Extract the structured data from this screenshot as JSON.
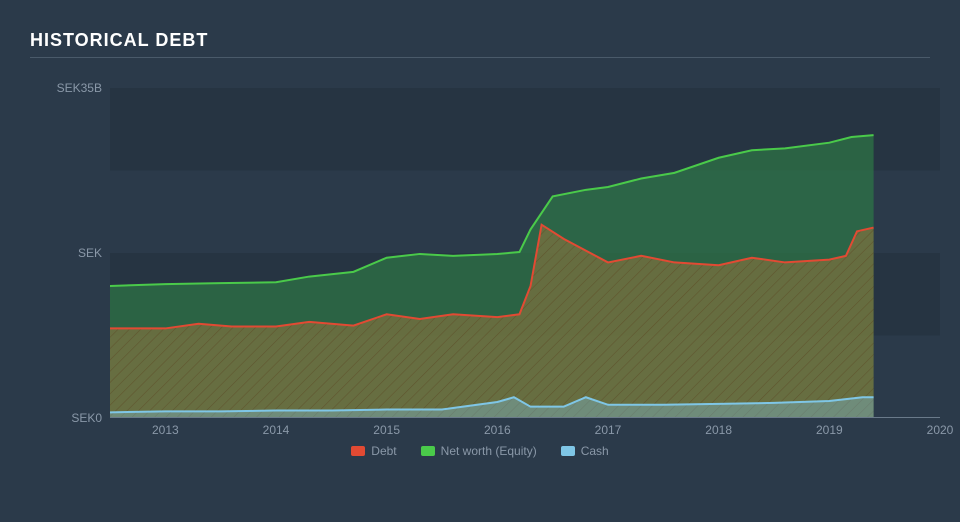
{
  "title": "HISTORICAL DEBT",
  "chart": {
    "type": "area",
    "background_color": "#2b3a4a",
    "grid_band_color": "rgba(0,0,0,0.10)",
    "axis_label_color": "#8a98a8",
    "axis_label_fontsize": 12,
    "title_color": "#ffffff",
    "title_fontsize": 18,
    "x_domain": [
      2012.5,
      2020
    ],
    "y_domain": [
      0,
      35
    ],
    "y_ticks": [
      {
        "v": 0,
        "label": "SEK0"
      },
      {
        "v": 17.5,
        "label": "SEK"
      },
      {
        "v": 35,
        "label": "SEK35B"
      }
    ],
    "x_ticks": [
      2013,
      2014,
      2015,
      2016,
      2017,
      2018,
      2019,
      2020
    ],
    "grid_bands_y": [
      [
        8.75,
        17.5
      ],
      [
        26.25,
        35
      ]
    ],
    "series": {
      "cash": {
        "label": "Cash",
        "stroke": "#7fc6e6",
        "stroke_width": 2,
        "fill": "rgba(127,198,230,0.35)",
        "points": [
          [
            2012.5,
            0.6
          ],
          [
            2013,
            0.7
          ],
          [
            2013.5,
            0.7
          ],
          [
            2014,
            0.8
          ],
          [
            2014.5,
            0.8
          ],
          [
            2015,
            0.9
          ],
          [
            2015.5,
            0.9
          ],
          [
            2016,
            1.7
          ],
          [
            2016.15,
            2.2
          ],
          [
            2016.3,
            1.2
          ],
          [
            2016.6,
            1.2
          ],
          [
            2016.8,
            2.2
          ],
          [
            2017,
            1.4
          ],
          [
            2017.5,
            1.4
          ],
          [
            2018,
            1.5
          ],
          [
            2018.5,
            1.6
          ],
          [
            2019,
            1.8
          ],
          [
            2019.3,
            2.2
          ],
          [
            2019.4,
            2.2
          ]
        ]
      },
      "debt": {
        "label": "Debt",
        "stroke": "#e24a33",
        "stroke_width": 2,
        "fill": "rgba(162,120,60,0.55)",
        "hatched": true,
        "points": [
          [
            2012.5,
            9.5
          ],
          [
            2013,
            9.5
          ],
          [
            2013.3,
            10
          ],
          [
            2013.6,
            9.7
          ],
          [
            2014,
            9.7
          ],
          [
            2014.3,
            10.2
          ],
          [
            2014.7,
            9.8
          ],
          [
            2015,
            11
          ],
          [
            2015.3,
            10.5
          ],
          [
            2015.6,
            11
          ],
          [
            2016,
            10.7
          ],
          [
            2016.2,
            11
          ],
          [
            2016.3,
            14
          ],
          [
            2016.4,
            20.5
          ],
          [
            2016.6,
            19
          ],
          [
            2017,
            16.5
          ],
          [
            2017.3,
            17.2
          ],
          [
            2017.6,
            16.5
          ],
          [
            2018,
            16.2
          ],
          [
            2018.3,
            17
          ],
          [
            2018.6,
            16.5
          ],
          [
            2019,
            16.8
          ],
          [
            2019.15,
            17.2
          ],
          [
            2019.25,
            19.8
          ],
          [
            2019.4,
            20.2
          ]
        ]
      },
      "equity": {
        "label": "Net worth (Equity)",
        "stroke": "#4aca4a",
        "stroke_width": 2,
        "fill": "rgba(46,120,70,0.70)",
        "points": [
          [
            2012.5,
            14
          ],
          [
            2013,
            14.2
          ],
          [
            2013.5,
            14.3
          ],
          [
            2014,
            14.4
          ],
          [
            2014.3,
            15
          ],
          [
            2014.7,
            15.5
          ],
          [
            2015,
            17
          ],
          [
            2015.3,
            17.4
          ],
          [
            2015.6,
            17.2
          ],
          [
            2016,
            17.4
          ],
          [
            2016.2,
            17.6
          ],
          [
            2016.3,
            20
          ],
          [
            2016.5,
            23.5
          ],
          [
            2016.8,
            24.2
          ],
          [
            2017,
            24.5
          ],
          [
            2017.3,
            25.4
          ],
          [
            2017.6,
            26
          ],
          [
            2018,
            27.6
          ],
          [
            2018.3,
            28.4
          ],
          [
            2018.6,
            28.6
          ],
          [
            2019,
            29.2
          ],
          [
            2019.2,
            29.8
          ],
          [
            2019.4,
            30
          ]
        ]
      }
    },
    "legend_order": [
      "debt",
      "equity",
      "cash"
    ]
  }
}
